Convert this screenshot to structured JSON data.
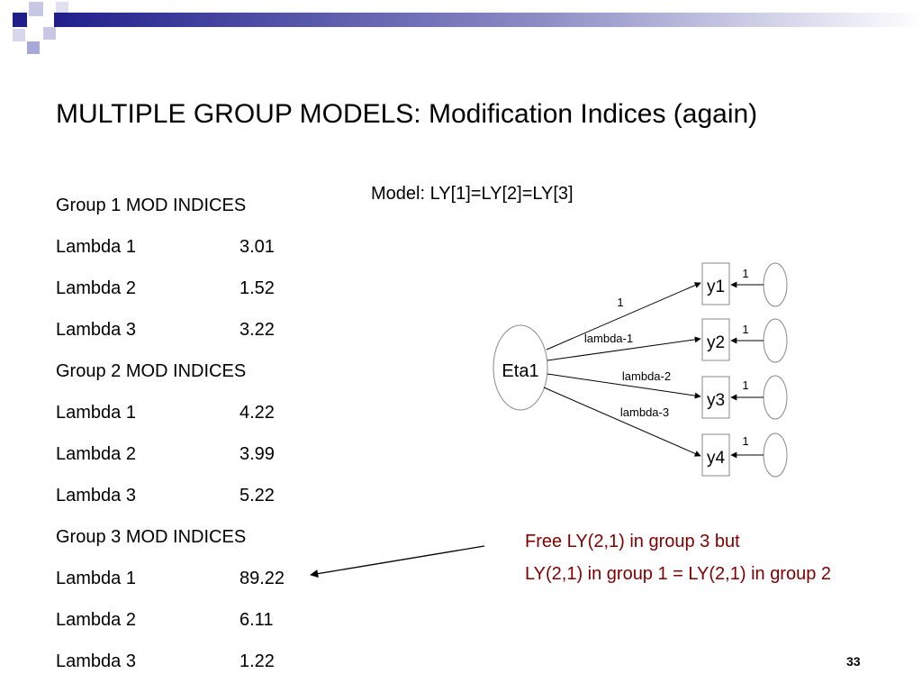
{
  "slide": {
    "title": "MULTIPLE GROUP MODELS: Modification Indices (again)",
    "page_number": "33"
  },
  "mod_indices": [
    {
      "label": "Group 1 MOD INDICES",
      "value": ""
    },
    {
      "label": "Lambda 1",
      "value": "3.01"
    },
    {
      "label": "Lambda 2",
      "value": "1.52"
    },
    {
      "label": "Lambda 3",
      "value": "3.22"
    },
    {
      "label": "Group 2 MOD INDICES",
      "value": ""
    },
    {
      "label": "Lambda 1",
      "value": "4.22"
    },
    {
      "label": "Lambda 2",
      "value": "3.99"
    },
    {
      "label": "Lambda 3",
      "value": "5.22"
    },
    {
      "label": "Group 3 MOD INDICES",
      "value": ""
    },
    {
      "label": "Lambda 1",
      "value": "89.22"
    },
    {
      "label": "Lambda 2",
      "value": "6.11"
    },
    {
      "label": "Lambda 3",
      "value": "1.22"
    }
  ],
  "model": {
    "label": "Model: LY[1]=LY[2]=LY[3]",
    "latent": "Eta1",
    "indicators": [
      "y1",
      "y2",
      "y3",
      "y4"
    ],
    "path_labels": [
      "1",
      "lambda-1",
      "lambda-2",
      "lambda-3"
    ],
    "error_labels": [
      "1",
      "1",
      "1",
      "1"
    ]
  },
  "note": {
    "line1": "Free LY(2,1) in group 3 but",
    "line2": "LY(2,1) in group 1 = LY(2,1) in group 2"
  },
  "colors": {
    "note_text": "#800000",
    "header_bar": "#1f1f8c",
    "header_square_light": "#a8a8d8"
  }
}
